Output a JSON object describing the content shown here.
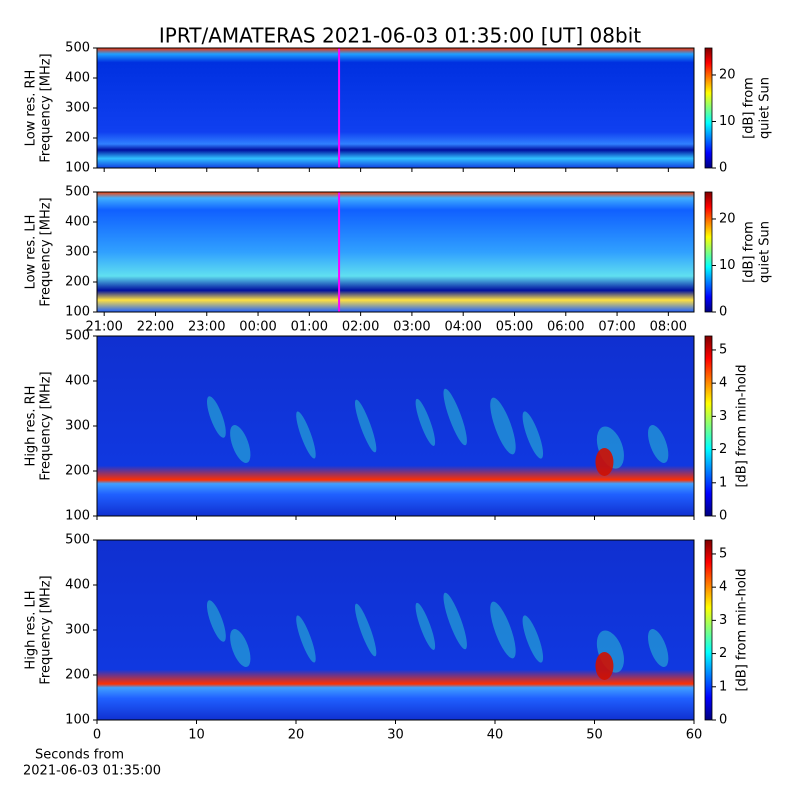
{
  "title": "IPRT/AMATERAS 2021-06-03 01:35:00 [UT]   08bit",
  "chart_data": [
    {
      "type": "heatmap",
      "ylabel": [
        "Low res. RH",
        "Frequency [MHz]"
      ],
      "xlim": [
        20.86,
        32.5
      ],
      "xticks": [
        {
          "value": 21,
          "label": "21:00"
        },
        {
          "value": 22,
          "label": "22:00"
        },
        {
          "value": 23,
          "label": "23:00"
        },
        {
          "value": 24,
          "label": "00:00"
        },
        {
          "value": 25,
          "label": "01:00"
        },
        {
          "value": 26,
          "label": "02:00"
        },
        {
          "value": 27,
          "label": "03:00"
        },
        {
          "value": 28,
          "label": "04:00"
        },
        {
          "value": 29,
          "label": "05:00"
        },
        {
          "value": 30,
          "label": "06:00"
        },
        {
          "value": 31,
          "label": "07:00"
        },
        {
          "value": 32,
          "label": "08:00"
        }
      ],
      "show_xticklabels": false,
      "ylim": [
        100,
        500
      ],
      "yticks": [
        100,
        200,
        300,
        400,
        500
      ],
      "marker_x": 25.58,
      "marker_color": "#ff00ff",
      "colormap": "jet",
      "clim": [
        0,
        25.8
      ],
      "cticks": [
        0,
        10,
        20
      ],
      "clabel": [
        "[dB] from",
        "quiet Sun"
      ]
    },
    {
      "type": "heatmap",
      "ylabel": [
        "Low res. LH",
        "Frequency [MHz]"
      ],
      "xlim": [
        20.86,
        32.5
      ],
      "xticks": [
        {
          "value": 21,
          "label": "21:00"
        },
        {
          "value": 22,
          "label": "22:00"
        },
        {
          "value": 23,
          "label": "23:00"
        },
        {
          "value": 24,
          "label": "00:00"
        },
        {
          "value": 25,
          "label": "01:00"
        },
        {
          "value": 26,
          "label": "02:00"
        },
        {
          "value": 27,
          "label": "03:00"
        },
        {
          "value": 28,
          "label": "04:00"
        },
        {
          "value": 29,
          "label": "05:00"
        },
        {
          "value": 30,
          "label": "06:00"
        },
        {
          "value": 31,
          "label": "07:00"
        },
        {
          "value": 32,
          "label": "08:00"
        }
      ],
      "show_xticklabels": true,
      "ylim": [
        100,
        500
      ],
      "yticks": [
        100,
        200,
        300,
        400,
        500
      ],
      "marker_x": 25.58,
      "marker_color": "#ff00ff",
      "colormap": "jet",
      "clim": [
        0,
        25.8
      ],
      "cticks": [
        0,
        10,
        20
      ],
      "clabel": [
        "[dB] from",
        "quiet Sun"
      ]
    },
    {
      "type": "heatmap",
      "ylabel": [
        "High res. RH",
        "Frequency [MHz]"
      ],
      "xlim": [
        0,
        60
      ],
      "xticks": [
        0,
        10,
        20,
        30,
        40,
        50,
        60
      ],
      "show_xticklabels": false,
      "ylim": [
        100,
        500
      ],
      "yticks": [
        100,
        200,
        300,
        400,
        500
      ],
      "colormap": "jet",
      "clim": [
        0,
        5.42
      ],
      "cticks": [
        0,
        1,
        2,
        3,
        4,
        5
      ],
      "clabel": [
        "[dB] from min-hold"
      ]
    },
    {
      "type": "heatmap",
      "ylabel": [
        "High res. LH",
        "Frequency [MHz]"
      ],
      "xlim": [
        0,
        60
      ],
      "xticks": [
        0,
        10,
        20,
        30,
        40,
        50,
        60
      ],
      "show_xticklabels": true,
      "xlabel": [
        "Seconds from",
        "2021-06-03 01:35:00"
      ],
      "ylim": [
        100,
        500
      ],
      "yticks": [
        100,
        200,
        300,
        400,
        500
      ],
      "colormap": "jet",
      "clim": [
        0,
        5.42
      ],
      "cticks": [
        0,
        1,
        2,
        3,
        4,
        5
      ],
      "clabel": [
        "[dB] from min-hold"
      ]
    }
  ]
}
